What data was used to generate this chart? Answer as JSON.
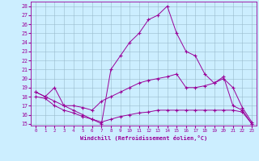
{
  "xlabel": "Windchill (Refroidissement éolien,°C)",
  "background_color": "#cceeff",
  "line_color": "#990099",
  "grid_color": "#99bbcc",
  "xlim": [
    -0.5,
    23.5
  ],
  "ylim": [
    14.8,
    28.5
  ],
  "yticks": [
    15,
    16,
    17,
    18,
    19,
    20,
    21,
    22,
    23,
    24,
    25,
    26,
    27,
    28
  ],
  "xticks": [
    0,
    1,
    2,
    3,
    4,
    5,
    6,
    7,
    8,
    9,
    10,
    11,
    12,
    13,
    14,
    15,
    16,
    17,
    18,
    19,
    20,
    21,
    22,
    23
  ],
  "series": [
    {
      "x": [
        0,
        1,
        2,
        3,
        4,
        5,
        6,
        7,
        8,
        9,
        10,
        11,
        12,
        13,
        14,
        15,
        16,
        17,
        18,
        19,
        20,
        21,
        22,
        23
      ],
      "y": [
        18.5,
        18.0,
        19.0,
        17.0,
        16.5,
        16.0,
        15.5,
        15.0,
        21.0,
        22.5,
        24.0,
        25.0,
        26.5,
        27.0,
        28.0,
        25.0,
        23.0,
        22.5,
        20.5,
        19.5,
        20.2,
        17.0,
        16.5,
        15.0
      ]
    },
    {
      "x": [
        0,
        1,
        2,
        3,
        4,
        5,
        6,
        7,
        8,
        9,
        10,
        11,
        12,
        13,
        14,
        15,
        16,
        17,
        18,
        19,
        20,
        21,
        22,
        23
      ],
      "y": [
        18.5,
        18.0,
        17.5,
        17.0,
        17.0,
        16.8,
        16.5,
        17.5,
        18.0,
        18.5,
        19.0,
        19.5,
        19.8,
        20.0,
        20.2,
        20.5,
        19.0,
        19.0,
        19.2,
        19.5,
        20.0,
        19.0,
        16.8,
        15.2
      ]
    },
    {
      "x": [
        0,
        1,
        2,
        3,
        4,
        5,
        6,
        7,
        8,
        9,
        10,
        11,
        12,
        13,
        14,
        15,
        16,
        17,
        18,
        19,
        20,
        21,
        22,
        23
      ],
      "y": [
        18.0,
        17.8,
        17.0,
        16.5,
        16.2,
        15.8,
        15.5,
        15.2,
        15.5,
        15.8,
        16.0,
        16.2,
        16.3,
        16.5,
        16.5,
        16.5,
        16.5,
        16.5,
        16.5,
        16.5,
        16.5,
        16.5,
        16.3,
        15.0
      ]
    }
  ]
}
